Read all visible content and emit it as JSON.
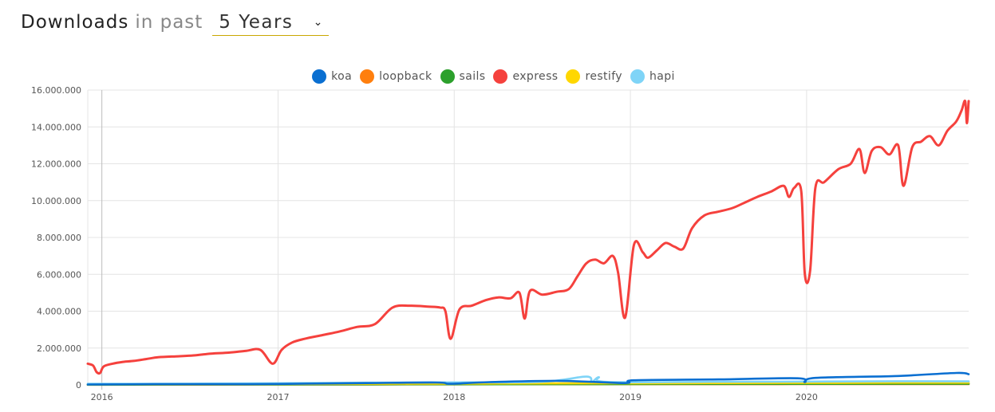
{
  "header": {
    "title": "Downloads",
    "connector": "in past",
    "period": "5 Years",
    "period_chevron_icon": "chevron-down-icon"
  },
  "colors": {
    "koa": "#0a6fd1",
    "loopback": "#ff7f0e",
    "sails": "#2ca02c",
    "express": "#f5413d",
    "restify": "#ffd700",
    "hapi": "#7fd4f7"
  },
  "chart_data": {
    "type": "line",
    "y_ticks": [
      "0",
      "2.000.000",
      "4.000.000",
      "6.000.000",
      "8.000.000",
      "10.000.000",
      "12.000.000",
      "14.000.000",
      "16.000.000"
    ],
    "x_ticks": [
      "2016",
      "2017",
      "2018",
      "2019",
      "2020"
    ],
    "ylim": [
      0,
      16000000
    ],
    "xlim": [
      2015.92,
      2020.92
    ],
    "grid": true,
    "legend_position": "top-center",
    "series": [
      {
        "name": "express",
        "color": "#f5413d",
        "points": [
          [
            2015.92,
            1150000
          ],
          [
            2015.95,
            1050000
          ],
          [
            2015.97,
            700000
          ],
          [
            2015.99,
            650000
          ],
          [
            2016.01,
            1000000
          ],
          [
            2016.06,
            1150000
          ],
          [
            2016.12,
            1250000
          ],
          [
            2016.18,
            1300000
          ],
          [
            2016.25,
            1400000
          ],
          [
            2016.32,
            1500000
          ],
          [
            2016.42,
            1550000
          ],
          [
            2016.52,
            1600000
          ],
          [
            2016.62,
            1700000
          ],
          [
            2016.72,
            1750000
          ],
          [
            2016.82,
            1850000
          ],
          [
            2016.9,
            1900000
          ],
          [
            2016.97,
            1150000
          ],
          [
            2017.02,
            1900000
          ],
          [
            2017.08,
            2300000
          ],
          [
            2017.15,
            2500000
          ],
          [
            2017.25,
            2700000
          ],
          [
            2017.35,
            2900000
          ],
          [
            2017.45,
            3150000
          ],
          [
            2017.55,
            3300000
          ],
          [
            2017.65,
            4200000
          ],
          [
            2017.75,
            4300000
          ],
          [
            2017.85,
            4250000
          ],
          [
            2017.92,
            4200000
          ],
          [
            2017.95,
            4000000
          ],
          [
            2017.98,
            2500000
          ],
          [
            2018.03,
            4100000
          ],
          [
            2018.1,
            4300000
          ],
          [
            2018.18,
            4600000
          ],
          [
            2018.25,
            4750000
          ],
          [
            2018.32,
            4700000
          ],
          [
            2018.37,
            5000000
          ],
          [
            2018.4,
            3600000
          ],
          [
            2018.43,
            5100000
          ],
          [
            2018.5,
            4900000
          ],
          [
            2018.58,
            5050000
          ],
          [
            2018.65,
            5200000
          ],
          [
            2018.7,
            5900000
          ],
          [
            2018.75,
            6600000
          ],
          [
            2018.8,
            6800000
          ],
          [
            2018.85,
            6600000
          ],
          [
            2018.9,
            7000000
          ],
          [
            2018.93,
            6100000
          ],
          [
            2018.97,
            3650000
          ],
          [
            2019.02,
            7600000
          ],
          [
            2019.07,
            7200000
          ],
          [
            2019.1,
            6900000
          ],
          [
            2019.15,
            7300000
          ],
          [
            2019.2,
            7700000
          ],
          [
            2019.25,
            7500000
          ],
          [
            2019.3,
            7400000
          ],
          [
            2019.35,
            8500000
          ],
          [
            2019.42,
            9200000
          ],
          [
            2019.5,
            9400000
          ],
          [
            2019.58,
            9600000
          ],
          [
            2019.65,
            9900000
          ],
          [
            2019.72,
            10200000
          ],
          [
            2019.8,
            10500000
          ],
          [
            2019.87,
            10800000
          ],
          [
            2019.9,
            10200000
          ],
          [
            2019.93,
            10700000
          ],
          [
            2019.97,
            10500000
          ],
          [
            2019.99,
            6000000
          ],
          [
            2020.02,
            6200000
          ],
          [
            2020.05,
            10700000
          ],
          [
            2020.1,
            11000000
          ],
          [
            2020.18,
            11700000
          ],
          [
            2020.25,
            12000000
          ],
          [
            2020.3,
            12800000
          ],
          [
            2020.33,
            11500000
          ],
          [
            2020.37,
            12700000
          ],
          [
            2020.42,
            12900000
          ],
          [
            2020.47,
            12500000
          ],
          [
            2020.52,
            13000000
          ],
          [
            2020.55,
            10800000
          ],
          [
            2020.6,
            12900000
          ],
          [
            2020.65,
            13200000
          ],
          [
            2020.7,
            13500000
          ],
          [
            2020.75,
            13000000
          ],
          [
            2020.8,
            13800000
          ],
          [
            2020.85,
            14300000
          ],
          [
            2020.88,
            14900000
          ],
          [
            2020.9,
            15400000
          ],
          [
            2020.91,
            14200000
          ],
          [
            2020.92,
            15400000
          ]
        ]
      },
      {
        "name": "koa",
        "color": "#0a6fd1",
        "points": [
          [
            2015.92,
            20000
          ],
          [
            2016.3,
            40000
          ],
          [
            2016.7,
            40000
          ],
          [
            2017.0,
            50000
          ],
          [
            2017.5,
            100000
          ],
          [
            2017.9,
            130000
          ],
          [
            2017.98,
            60000
          ],
          [
            2018.2,
            150000
          ],
          [
            2018.6,
            220000
          ],
          [
            2018.97,
            100000
          ],
          [
            2019.02,
            250000
          ],
          [
            2019.5,
            300000
          ],
          [
            2019.95,
            360000
          ],
          [
            2019.99,
            150000
          ],
          [
            2020.05,
            380000
          ],
          [
            2020.5,
            480000
          ],
          [
            2020.85,
            650000
          ],
          [
            2020.92,
            580000
          ]
        ]
      },
      {
        "name": "hapi",
        "color": "#7fd4f7",
        "points": [
          [
            2015.92,
            60000
          ],
          [
            2016.5,
            70000
          ],
          [
            2017.0,
            90000
          ],
          [
            2017.5,
            120000
          ],
          [
            2018.0,
            140000
          ],
          [
            2018.5,
            170000
          ],
          [
            2018.75,
            450000
          ],
          [
            2018.78,
            150000
          ],
          [
            2018.82,
            420000
          ],
          [
            2018.87,
            160000
          ],
          [
            2019.5,
            170000
          ],
          [
            2020.0,
            180000
          ],
          [
            2020.5,
            200000
          ],
          [
            2020.92,
            190000
          ]
        ]
      },
      {
        "name": "restify",
        "color": "#ffd700",
        "points": [
          [
            2015.92,
            30000
          ],
          [
            2016.5,
            40000
          ],
          [
            2017.0,
            50000
          ],
          [
            2017.5,
            60000
          ],
          [
            2018.0,
            70000
          ],
          [
            2018.5,
            80000
          ],
          [
            2019.0,
            90000
          ],
          [
            2019.5,
            100000
          ],
          [
            2020.0,
            110000
          ],
          [
            2020.5,
            120000
          ],
          [
            2020.92,
            120000
          ]
        ]
      },
      {
        "name": "sails",
        "color": "#2ca02c",
        "points": [
          [
            2015.92,
            15000
          ],
          [
            2016.5,
            20000
          ],
          [
            2017.0,
            25000
          ],
          [
            2017.5,
            30000
          ],
          [
            2018.0,
            35000
          ],
          [
            2018.5,
            40000
          ],
          [
            2019.0,
            45000
          ],
          [
            2019.5,
            50000
          ],
          [
            2020.0,
            55000
          ],
          [
            2020.5,
            60000
          ],
          [
            2020.92,
            60000
          ]
        ]
      },
      {
        "name": "loopback",
        "color": "#ff7f0e",
        "points": [
          [
            2015.92,
            10000
          ],
          [
            2016.5,
            15000
          ],
          [
            2017.0,
            20000
          ],
          [
            2017.5,
            25000
          ],
          [
            2018.0,
            30000
          ],
          [
            2018.5,
            35000
          ],
          [
            2019.0,
            40000
          ],
          [
            2019.5,
            40000
          ],
          [
            2020.0,
            45000
          ],
          [
            2020.5,
            45000
          ],
          [
            2020.92,
            45000
          ]
        ]
      }
    ]
  },
  "legend": [
    {
      "name": "koa",
      "color": "#0a6fd1"
    },
    {
      "name": "loopback",
      "color": "#ff7f0e"
    },
    {
      "name": "sails",
      "color": "#2ca02c"
    },
    {
      "name": "express",
      "color": "#f5413d"
    },
    {
      "name": "restify",
      "color": "#ffd700"
    },
    {
      "name": "hapi",
      "color": "#7fd4f7"
    }
  ]
}
